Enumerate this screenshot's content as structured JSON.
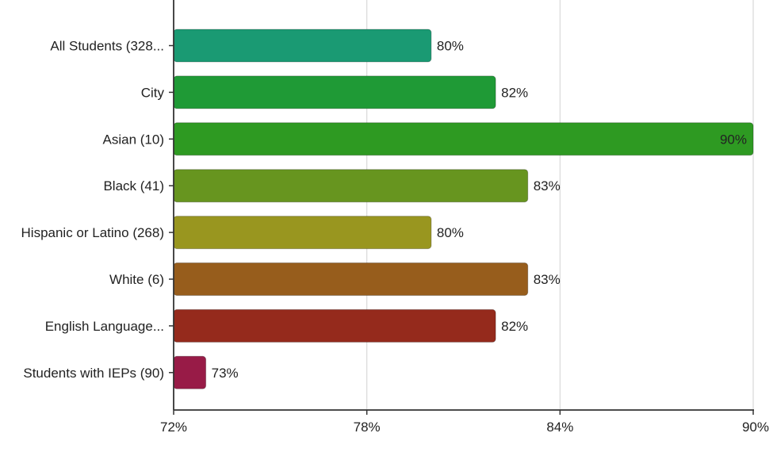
{
  "chart_data": {
    "type": "bar",
    "orientation": "horizontal",
    "categories": [
      "All Students (328...",
      "City",
      "Asian (10)",
      "Black (41)",
      "Hispanic or Latino (268)",
      "White (6)",
      "English Language...",
      "Students with IEPs (90)"
    ],
    "values": [
      80,
      82,
      90,
      83,
      80,
      83,
      82,
      73
    ],
    "value_labels": [
      "80%",
      "82%",
      "90%",
      "83%",
      "80%",
      "83%",
      "82%",
      "73%"
    ],
    "colors": [
      "#1a9a73",
      "#1f9a36",
      "#2e9a22",
      "#67951f",
      "#99961f",
      "#975d1c",
      "#952a1c",
      "#981b47"
    ],
    "xlim": [
      72,
      90
    ],
    "xticks": [
      72,
      78,
      84,
      90
    ],
    "xtick_labels": [
      "72%",
      "78%",
      "84%",
      "90%"
    ],
    "grid": true,
    "title": "",
    "xlabel": "",
    "ylabel": ""
  }
}
